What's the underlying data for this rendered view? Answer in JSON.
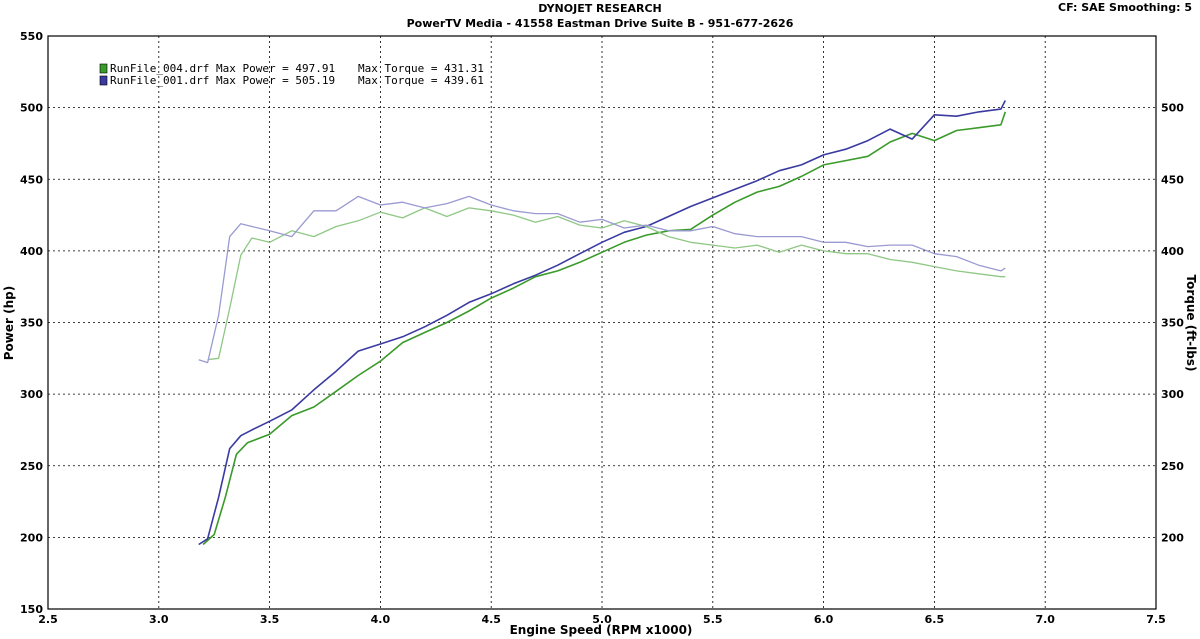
{
  "header": {
    "title": "DYNOJET RESEARCH",
    "subtitle": "PowerTV Media - 41558 Eastman Drive Suite B - 951-677-2626",
    "corner": "CF: SAE  Smoothing: 5"
  },
  "chart_data": {
    "type": "line",
    "xlabel": "Engine Speed (RPM x1000)",
    "ylabel": "Power (hp)",
    "y2label": "Torque (ft-lbs)",
    "xlim": [
      2.5,
      7.5
    ],
    "ylim": [
      150,
      550
    ],
    "y2lim": [
      150,
      550
    ],
    "xticks": [
      "2.5",
      "3.0",
      "3.5",
      "4.0",
      "4.5",
      "5.0",
      "5.5",
      "6.0",
      "6.5",
      "7.0",
      "7.5"
    ],
    "yticks": [
      "150",
      "200",
      "250",
      "300",
      "350",
      "400",
      "450",
      "500",
      "550"
    ],
    "y2ticks": [
      "200",
      "250",
      "300",
      "350",
      "400",
      "450",
      "500"
    ],
    "grid": true,
    "legend_position": "top-left",
    "legend": [
      {
        "text": "RunFile_004.drf Max Power = 497.91",
        "torque_text": "Max Torque = 431.31",
        "color": "#3a9a2a"
      },
      {
        "text": "RunFile_001.drf Max Power = 505.19",
        "torque_text": "Max Torque = 439.61",
        "color": "#3a3aa0"
      }
    ],
    "series": [
      {
        "name": "RunFile_004.drf",
        "kind": "power",
        "color": "#3a9a2a",
        "x": [
          3.2,
          3.25,
          3.3,
          3.35,
          3.4,
          3.5,
          3.6,
          3.7,
          3.8,
          3.9,
          4.0,
          4.1,
          4.2,
          4.3,
          4.4,
          4.5,
          4.6,
          4.7,
          4.8,
          4.9,
          5.0,
          5.1,
          5.2,
          5.3,
          5.4,
          5.5,
          5.6,
          5.7,
          5.8,
          5.9,
          6.0,
          6.1,
          6.2,
          6.3,
          6.4,
          6.5,
          6.6,
          6.7,
          6.8,
          6.82
        ],
        "values": [
          195,
          202,
          228,
          258,
          266,
          272,
          285,
          291,
          302,
          313,
          323,
          336,
          343,
          350,
          358,
          367,
          374,
          382,
          386,
          392,
          399,
          406,
          411,
          414,
          415,
          425,
          434,
          441,
          445,
          452,
          460,
          463,
          466,
          476,
          482,
          477,
          484,
          486,
          488,
          497
        ]
      },
      {
        "name": "RunFile_001.drf",
        "kind": "power",
        "color": "#3a3aa0",
        "x": [
          3.18,
          3.22,
          3.27,
          3.32,
          3.37,
          3.42,
          3.5,
          3.6,
          3.7,
          3.8,
          3.9,
          4.0,
          4.1,
          4.2,
          4.3,
          4.4,
          4.5,
          4.6,
          4.7,
          4.8,
          4.9,
          5.0,
          5.1,
          5.2,
          5.3,
          5.4,
          5.5,
          5.6,
          5.7,
          5.8,
          5.9,
          6.0,
          6.1,
          6.2,
          6.3,
          6.4,
          6.5,
          6.6,
          6.7,
          6.8,
          6.82
        ],
        "values": [
          195,
          199,
          228,
          262,
          271,
          275,
          281,
          289,
          303,
          316,
          330,
          335,
          340,
          347,
          355,
          364,
          370,
          377,
          383,
          390,
          398,
          406,
          413,
          417,
          424,
          431,
          437,
          443,
          449,
          456,
          460,
          467,
          471,
          477,
          485,
          478,
          495,
          494,
          497,
          499,
          505
        ]
      },
      {
        "name": "RunFile_004.drf",
        "kind": "torque",
        "color": "#8fc884",
        "x": [
          3.22,
          3.27,
          3.32,
          3.37,
          3.42,
          3.5,
          3.6,
          3.7,
          3.8,
          3.9,
          4.0,
          4.1,
          4.2,
          4.3,
          4.4,
          4.5,
          4.6,
          4.7,
          4.8,
          4.9,
          5.0,
          5.1,
          5.2,
          5.3,
          5.4,
          5.5,
          5.6,
          5.7,
          5.8,
          5.9,
          6.0,
          6.1,
          6.2,
          6.3,
          6.4,
          6.5,
          6.6,
          6.7,
          6.8,
          6.82
        ],
        "values": [
          324,
          325,
          360,
          397,
          409,
          406,
          414,
          410,
          417,
          421,
          427,
          423,
          430,
          424,
          430,
          428,
          425,
          420,
          424,
          418,
          416,
          421,
          417,
          410,
          406,
          404,
          402,
          404,
          399,
          404,
          400,
          398,
          398,
          394,
          392,
          389,
          386,
          384,
          382,
          382
        ]
      },
      {
        "name": "RunFile_001.drf",
        "kind": "torque",
        "color": "#9a9ad2",
        "x": [
          3.18,
          3.22,
          3.27,
          3.32,
          3.37,
          3.42,
          3.5,
          3.6,
          3.7,
          3.8,
          3.9,
          4.0,
          4.1,
          4.2,
          4.3,
          4.4,
          4.5,
          4.6,
          4.7,
          4.8,
          4.9,
          5.0,
          5.1,
          5.2,
          5.3,
          5.4,
          5.5,
          5.6,
          5.7,
          5.8,
          5.9,
          6.0,
          6.1,
          6.2,
          6.3,
          6.4,
          6.5,
          6.6,
          6.7,
          6.8,
          6.82
        ],
        "values": [
          324,
          322,
          355,
          410,
          419,
          417,
          414,
          410,
          428,
          428,
          438,
          432,
          434,
          430,
          433,
          438,
          432,
          428,
          426,
          426,
          420,
          422,
          416,
          418,
          414,
          414,
          417,
          412,
          410,
          410,
          410,
          406,
          406,
          403,
          404,
          404,
          398,
          396,
          390,
          386,
          388
        ]
      }
    ]
  }
}
